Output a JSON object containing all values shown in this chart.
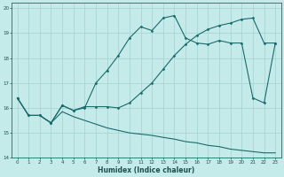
{
  "xlabel": "Humidex (Indice chaleur)",
  "bg_color": "#c5eaea",
  "grid_color": "#a8d5d5",
  "line_color": "#1a6b6b",
  "xlim": [
    -0.5,
    23.5
  ],
  "ylim": [
    14,
    20.2
  ],
  "xticks": [
    0,
    1,
    2,
    3,
    4,
    5,
    6,
    7,
    8,
    9,
    10,
    11,
    12,
    13,
    14,
    15,
    16,
    17,
    18,
    19,
    20,
    21,
    22,
    23
  ],
  "yticks": [
    14,
    15,
    16,
    17,
    18,
    19,
    20
  ],
  "curve1_x": [
    0,
    1,
    2,
    3,
    4,
    5,
    6,
    7,
    8,
    9,
    10,
    11,
    12,
    13,
    14,
    15,
    16,
    17,
    18,
    19,
    20,
    21,
    22,
    23
  ],
  "curve1_y": [
    16.4,
    15.7,
    15.7,
    15.4,
    16.1,
    15.9,
    16.0,
    17.0,
    17.5,
    18.1,
    18.8,
    19.25,
    19.1,
    19.6,
    19.7,
    18.8,
    18.6,
    18.55,
    18.7,
    18.6,
    18.6,
    16.4,
    16.2,
    18.6
  ],
  "curve2_x": [
    0,
    1,
    2,
    3,
    4,
    5,
    6,
    7,
    8,
    9,
    10,
    11,
    12,
    13,
    14,
    15,
    16,
    17,
    18,
    19,
    20,
    21,
    22,
    23
  ],
  "curve2_y": [
    16.4,
    15.7,
    15.7,
    15.4,
    16.1,
    15.9,
    16.05,
    16.05,
    16.05,
    16.0,
    16.2,
    16.6,
    17.0,
    17.55,
    18.1,
    18.55,
    18.9,
    19.15,
    19.3,
    19.4,
    19.55,
    19.6,
    18.6,
    18.6
  ],
  "curve3_x": [
    0,
    1,
    2,
    3,
    4,
    5,
    6,
    7,
    8,
    9,
    10,
    11,
    12,
    13,
    14,
    15,
    16,
    17,
    18,
    19,
    20,
    21,
    22,
    23
  ],
  "curve3_y": [
    16.4,
    15.7,
    15.7,
    15.4,
    15.85,
    15.65,
    15.5,
    15.35,
    15.2,
    15.1,
    15.0,
    14.95,
    14.9,
    14.82,
    14.75,
    14.65,
    14.6,
    14.5,
    14.45,
    14.35,
    14.3,
    14.25,
    14.2,
    14.2
  ]
}
